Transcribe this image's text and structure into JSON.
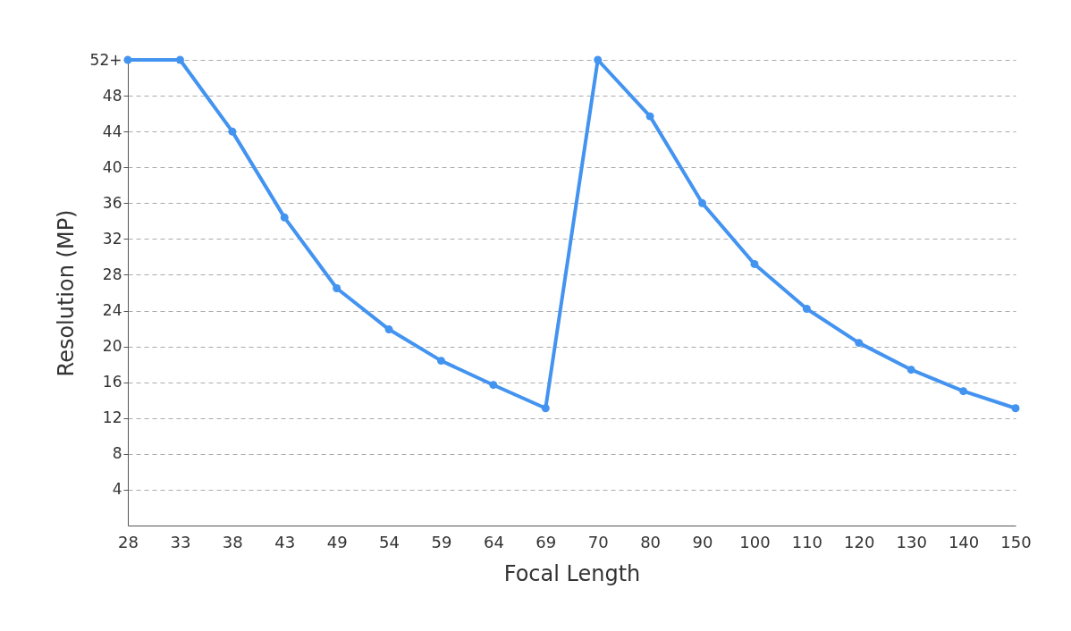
{
  "chart_data": {
    "type": "line",
    "xlabel": "Focal Length",
    "ylabel": "Resolution (MP)",
    "categories": [
      "28",
      "33",
      "38",
      "43",
      "49",
      "54",
      "59",
      "64",
      "69",
      "70",
      "80",
      "90",
      "100",
      "110",
      "120",
      "130",
      "140",
      "150"
    ],
    "series": [
      {
        "color": "#4393f0",
        "values": [
          52,
          52,
          44,
          34.4,
          26.5,
          21.9,
          18.4,
          15.7,
          13.1,
          52,
          45.7,
          36.0,
          29.2,
          24.2,
          20.4,
          17.4,
          15.0,
          13.1
        ]
      }
    ],
    "ylim": [
      0,
      52
    ],
    "yticks": [
      4,
      8,
      12,
      16,
      20,
      24,
      28,
      32,
      36,
      40,
      44,
      48,
      {
        "value": 52,
        "label": "52+"
      }
    ],
    "grid": "y",
    "marker": "circle",
    "line_style": "solid"
  }
}
